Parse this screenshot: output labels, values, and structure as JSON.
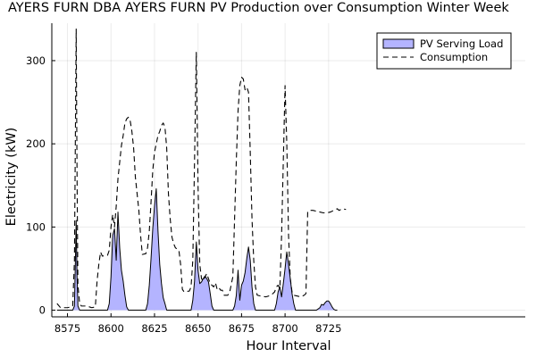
{
  "chart_data": {
    "type": "area",
    "title": "AYERS FURN DBA AYERS FURN PV Production over Consumption Winter Week",
    "xlabel": "Hour Interval",
    "ylabel": "Electricity (kW)",
    "xlim": [
      8566,
      8838
    ],
    "ylim": [
      -8,
      345
    ],
    "xticks": [
      8575,
      8600,
      8625,
      8650,
      8675,
      8700,
      8725
    ],
    "yticks": [
      0,
      100,
      200,
      300
    ],
    "grid": true,
    "legend": "top-right",
    "series": [
      {
        "name": "PV Serving Load",
        "style": "filled-area",
        "color": "#b4b4ff",
        "points": [
          [
            8569,
            0
          ],
          [
            8578,
            0
          ],
          [
            8579,
            5
          ],
          [
            8579.5,
            55
          ],
          [
            8580,
            108
          ],
          [
            8580.5,
            40
          ],
          [
            8581,
            5
          ],
          [
            8582,
            0
          ],
          [
            8598,
            0
          ],
          [
            8599,
            8
          ],
          [
            8600,
            40
          ],
          [
            8601,
            90
          ],
          [
            8602,
            98
          ],
          [
            8603,
            60
          ],
          [
            8604,
            118
          ],
          [
            8605,
            75
          ],
          [
            8606,
            48
          ],
          [
            8607,
            35
          ],
          [
            8608,
            18
          ],
          [
            8609,
            4
          ],
          [
            8610,
            0
          ],
          [
            8620,
            0
          ],
          [
            8621,
            8
          ],
          [
            8622,
            30
          ],
          [
            8623,
            62
          ],
          [
            8624,
            98
          ],
          [
            8625,
            125
          ],
          [
            8626,
            146
          ],
          [
            8627,
            95
          ],
          [
            8628,
            55
          ],
          [
            8629,
            32
          ],
          [
            8630,
            15
          ],
          [
            8631,
            8
          ],
          [
            8632,
            0
          ],
          [
            8646,
            0
          ],
          [
            8647,
            12
          ],
          [
            8648,
            35
          ],
          [
            8649,
            82
          ],
          [
            8650,
            48
          ],
          [
            8651,
            32
          ],
          [
            8652,
            34
          ],
          [
            8653,
            38
          ],
          [
            8654,
            41
          ],
          [
            8655,
            38
          ],
          [
            8656,
            34
          ],
          [
            8657,
            20
          ],
          [
            8658,
            5
          ],
          [
            8659,
            0
          ],
          [
            8670,
            0
          ],
          [
            8671,
            5
          ],
          [
            8672,
            18
          ],
          [
            8673,
            48
          ],
          [
            8674,
            12
          ],
          [
            8675,
            30
          ],
          [
            8676,
            35
          ],
          [
            8677,
            45
          ],
          [
            8678,
            62
          ],
          [
            8679,
            76
          ],
          [
            8680,
            60
          ],
          [
            8681,
            28
          ],
          [
            8682,
            8
          ],
          [
            8683,
            0
          ],
          [
            8694,
            0
          ],
          [
            8695,
            8
          ],
          [
            8696,
            22
          ],
          [
            8697,
            28
          ],
          [
            8698,
            16
          ],
          [
            8699,
            32
          ],
          [
            8700,
            50
          ],
          [
            8701,
            70
          ],
          [
            8702,
            55
          ],
          [
            8703,
            38
          ],
          [
            8704,
            20
          ],
          [
            8705,
            8
          ],
          [
            8706,
            0
          ],
          [
            8718,
            0
          ],
          [
            8720,
            3
          ],
          [
            8721,
            7
          ],
          [
            8722,
            6
          ],
          [
            8723,
            9
          ],
          [
            8724,
            11
          ],
          [
            8725,
            11
          ],
          [
            8726,
            8
          ],
          [
            8727,
            4
          ],
          [
            8728,
            1
          ],
          [
            8729,
            0
          ],
          [
            8730,
            0
          ]
        ]
      },
      {
        "name": "Consumption",
        "style": "dashed",
        "color": "#000000",
        "points": [
          [
            8569,
            8
          ],
          [
            8571,
            3
          ],
          [
            8573,
            3
          ],
          [
            8575,
            3
          ],
          [
            8577,
            4
          ],
          [
            8578,
            5
          ],
          [
            8579,
            60
          ],
          [
            8579.5,
            200
          ],
          [
            8580,
            338
          ],
          [
            8580.5,
            160
          ],
          [
            8581,
            30
          ],
          [
            8582,
            8
          ],
          [
            8583,
            5
          ],
          [
            8586,
            5
          ],
          [
            8589,
            3
          ],
          [
            8591,
            4
          ],
          [
            8592,
            35
          ],
          [
            8593,
            55
          ],
          [
            8594,
            70
          ],
          [
            8595,
            65
          ],
          [
            8598,
            66
          ],
          [
            8599,
            72
          ],
          [
            8600,
            100
          ],
          [
            8601,
            115
          ],
          [
            8602,
            100
          ],
          [
            8603,
            125
          ],
          [
            8604,
            158
          ],
          [
            8605,
            178
          ],
          [
            8606,
            198
          ],
          [
            8607,
            210
          ],
          [
            8608,
            225
          ],
          [
            8609,
            230
          ],
          [
            8610,
            232
          ],
          [
            8611,
            228
          ],
          [
            8612,
            215
          ],
          [
            8613,
            195
          ],
          [
            8614,
            160
          ],
          [
            8615,
            140
          ],
          [
            8616,
            120
          ],
          [
            8617,
            90
          ],
          [
            8618,
            67
          ],
          [
            8620,
            68
          ],
          [
            8621,
            75
          ],
          [
            8622,
            95
          ],
          [
            8623,
            130
          ],
          [
            8624,
            168
          ],
          [
            8625,
            190
          ],
          [
            8626,
            200
          ],
          [
            8627,
            210
          ],
          [
            8628,
            215
          ],
          [
            8629,
            222
          ],
          [
            8630,
            225
          ],
          [
            8631,
            220
          ],
          [
            8632,
            195
          ],
          [
            8633,
            140
          ],
          [
            8634,
            110
          ],
          [
            8635,
            88
          ],
          [
            8636,
            80
          ],
          [
            8637,
            75
          ],
          [
            8639,
            72
          ],
          [
            8640,
            55
          ],
          [
            8641,
            25
          ],
          [
            8642,
            22
          ],
          [
            8645,
            23
          ],
          [
            8646,
            28
          ],
          [
            8647,
            60
          ],
          [
            8648,
            180
          ],
          [
            8649,
            310
          ],
          [
            8650,
            150
          ],
          [
            8651,
            55
          ],
          [
            8652,
            38
          ],
          [
            8653,
            35
          ],
          [
            8654,
            40
          ],
          [
            8655,
            44
          ],
          [
            8656,
            38
          ],
          [
            8657,
            32
          ],
          [
            8658,
            30
          ],
          [
            8659,
            28
          ],
          [
            8660,
            33
          ],
          [
            8661,
            25
          ],
          [
            8662,
            27
          ],
          [
            8663,
            24
          ],
          [
            8664,
            24
          ],
          [
            8665,
            18
          ],
          [
            8667,
            18
          ],
          [
            8668,
            20
          ],
          [
            8669,
            30
          ],
          [
            8670,
            40
          ],
          [
            8671,
            110
          ],
          [
            8672,
            180
          ],
          [
            8673,
            240
          ],
          [
            8674,
            270
          ],
          [
            8675,
            280
          ],
          [
            8676,
            278
          ],
          [
            8677,
            265
          ],
          [
            8678,
            268
          ],
          [
            8679,
            262
          ],
          [
            8680,
            190
          ],
          [
            8681,
            110
          ],
          [
            8682,
            60
          ],
          [
            8683,
            28
          ],
          [
            8684,
            18
          ],
          [
            8686,
            17
          ],
          [
            8689,
            16
          ],
          [
            8692,
            18
          ],
          [
            8693,
            20
          ],
          [
            8694,
            22
          ],
          [
            8695,
            28
          ],
          [
            8696,
            30
          ],
          [
            8697,
            26
          ],
          [
            8698,
            90
          ],
          [
            8699,
            180
          ],
          [
            8700,
            270
          ],
          [
            8701,
            200
          ],
          [
            8702,
            90
          ],
          [
            8703,
            38
          ],
          [
            8704,
            22
          ],
          [
            8705,
            18
          ],
          [
            8707,
            17
          ],
          [
            8709,
            16
          ],
          [
            8711,
            18
          ],
          [
            8712,
            20
          ],
          [
            8713,
            118
          ],
          [
            8714,
            120
          ],
          [
            8716,
            120
          ],
          [
            8718,
            119
          ],
          [
            8720,
            118
          ],
          [
            8722,
            117
          ],
          [
            8724,
            117
          ],
          [
            8726,
            118
          ],
          [
            8728,
            120
          ],
          [
            8730,
            122
          ],
          [
            8731,
            120
          ],
          [
            8733,
            122
          ],
          [
            8735,
            121
          ]
        ]
      }
    ]
  }
}
